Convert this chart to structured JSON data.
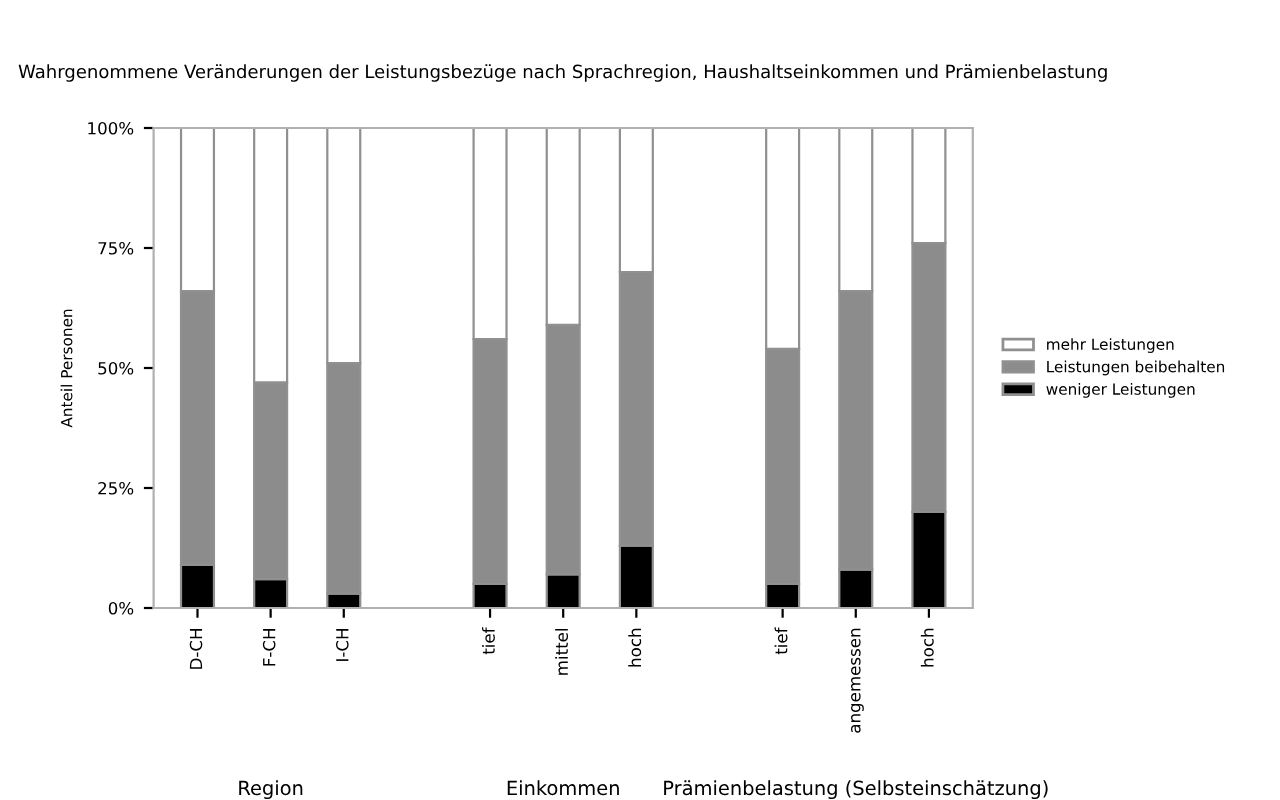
{
  "chart_data": {
    "type": "bar",
    "title": "Wahrgenommene Veränderungen der Leistungsbezüge nach Sprachregion, Haushaltseinkommen und Prämienbelastung",
    "ylabel": "Anteil Personen",
    "categories": [
      "D-CH",
      "F-CH",
      "I-CH",
      null,
      "tief",
      "mittel",
      "hoch",
      null,
      "tief",
      "angemessen",
      "hoch"
    ],
    "stacked": true,
    "series": [
      {
        "name": "weniger Leistungen",
        "color": "#000000",
        "values": [
          9,
          6,
          3,
          null,
          5,
          7,
          13,
          null,
          5,
          8,
          20
        ]
      },
      {
        "name": "Leistungen beibehalten",
        "color": "#8c8c8c",
        "values": [
          57,
          41,
          48,
          null,
          51,
          52,
          57,
          null,
          49,
          58,
          56
        ]
      },
      {
        "name": "mehr Leistungen",
        "color": "#ffffff",
        "values": [
          34,
          53,
          49,
          null,
          44,
          41,
          30,
          null,
          46,
          34,
          24
        ]
      }
    ],
    "ylim": [
      0,
      100
    ],
    "yticks": [
      {
        "value": 0,
        "label": "0%"
      },
      {
        "value": 25,
        "label": "25%"
      },
      {
        "value": 50,
        "label": "50%"
      },
      {
        "value": 75,
        "label": "75%"
      },
      {
        "value": 100,
        "label": "100%"
      }
    ],
    "legend": "right",
    "annotations": [
      "Region",
      "Einkommen",
      "Prämienbelastung (Selbsteinschätzung)"
    ]
  }
}
